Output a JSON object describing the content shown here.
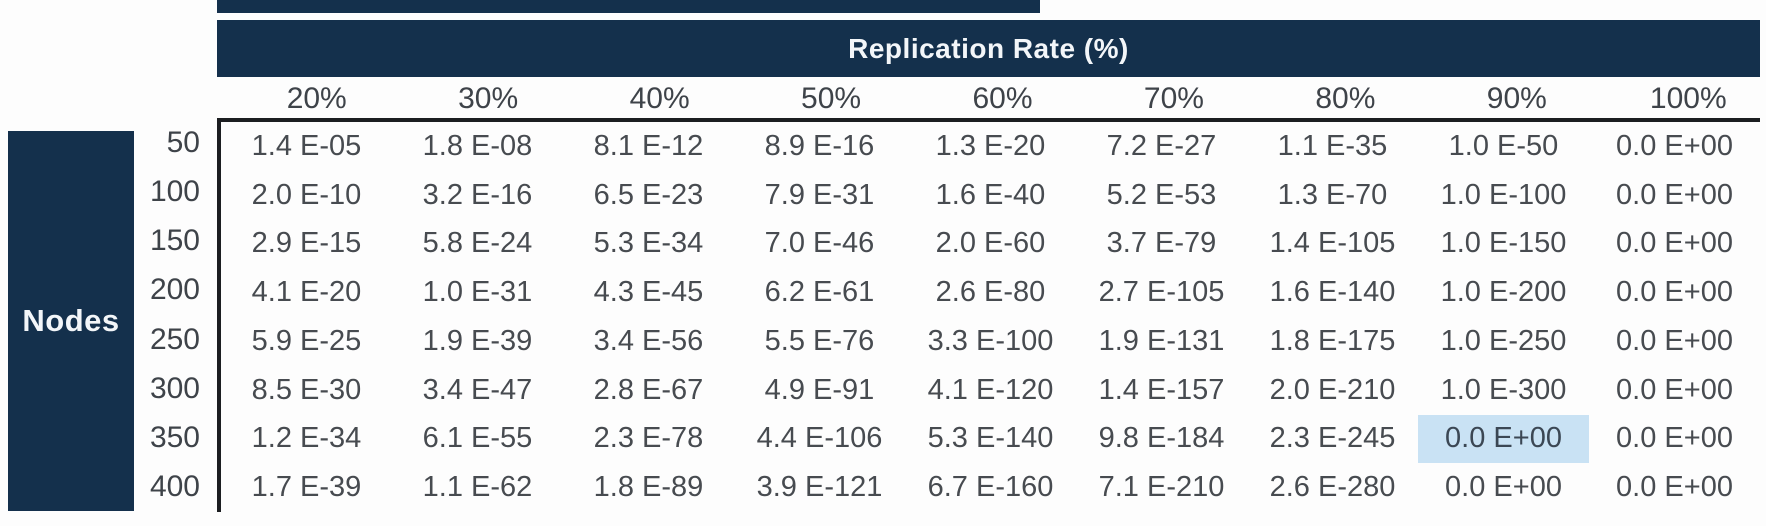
{
  "colors": {
    "navy": "#14304c",
    "highlight": "#c9e2f4",
    "line": "#1c1e21",
    "header_text": "#3e4349",
    "cell_text": "#474b50",
    "title_text": "#f3f6f9"
  },
  "chart_data": {
    "type": "table",
    "title": "Replication Rate (%)",
    "row_axis_label": "Nodes",
    "columns": [
      "20%",
      "30%",
      "40%",
      "50%",
      "60%",
      "70%",
      "80%",
      "90%",
      "100%"
    ],
    "rows": [
      {
        "label": "50",
        "values": [
          "1.4 E-05",
          "1.8 E-08",
          "8.1 E-12",
          "8.9 E-16",
          "1.3 E-20",
          "7.2 E-27",
          "1.1 E-35",
          "1.0 E-50",
          "0.0 E+00"
        ]
      },
      {
        "label": "100",
        "values": [
          "2.0 E-10",
          "3.2 E-16",
          "6.5 E-23",
          "7.9 E-31",
          "1.6 E-40",
          "5.2 E-53",
          "1.3 E-70",
          "1.0 E-100",
          "0.0 E+00"
        ]
      },
      {
        "label": "150",
        "values": [
          "2.9 E-15",
          "5.8 E-24",
          "5.3 E-34",
          "7.0 E-46",
          "2.0 E-60",
          "3.7 E-79",
          "1.4 E-105",
          "1.0 E-150",
          "0.0 E+00"
        ]
      },
      {
        "label": "200",
        "values": [
          "4.1 E-20",
          "1.0 E-31",
          "4.3 E-45",
          "6.2 E-61",
          "2.6 E-80",
          "2.7 E-105",
          "1.6 E-140",
          "1.0 E-200",
          "0.0 E+00"
        ]
      },
      {
        "label": "250",
        "values": [
          "5.9 E-25",
          "1.9 E-39",
          "3.4 E-56",
          "5.5 E-76",
          "3.3 E-100",
          "1.9 E-131",
          "1.8 E-175",
          "1.0 E-250",
          "0.0 E+00"
        ]
      },
      {
        "label": "300",
        "values": [
          "8.5 E-30",
          "3.4 E-47",
          "2.8 E-67",
          "4.9 E-91",
          "4.1 E-120",
          "1.4 E-157",
          "2.0 E-210",
          "1.0 E-300",
          "0.0 E+00"
        ]
      },
      {
        "label": "350",
        "values": [
          "1.2 E-34",
          "6.1 E-55",
          "2.3 E-78",
          "4.4 E-106",
          "5.3 E-140",
          "9.8 E-184",
          "2.3 E-245",
          "0.0 E+00",
          "0.0 E+00"
        ]
      },
      {
        "label": "400",
        "values": [
          "1.7 E-39",
          "1.1 E-62",
          "1.8 E-89",
          "3.9 E-121",
          "6.7 E-160",
          "7.1 E-210",
          "2.6 E-280",
          "0.0 E+00",
          "0.0 E+00"
        ]
      }
    ],
    "highlight_cell": {
      "row_index": 6,
      "col_index": 7,
      "row_label": "350",
      "column": "90%",
      "value": "0.0 E+00"
    }
  }
}
